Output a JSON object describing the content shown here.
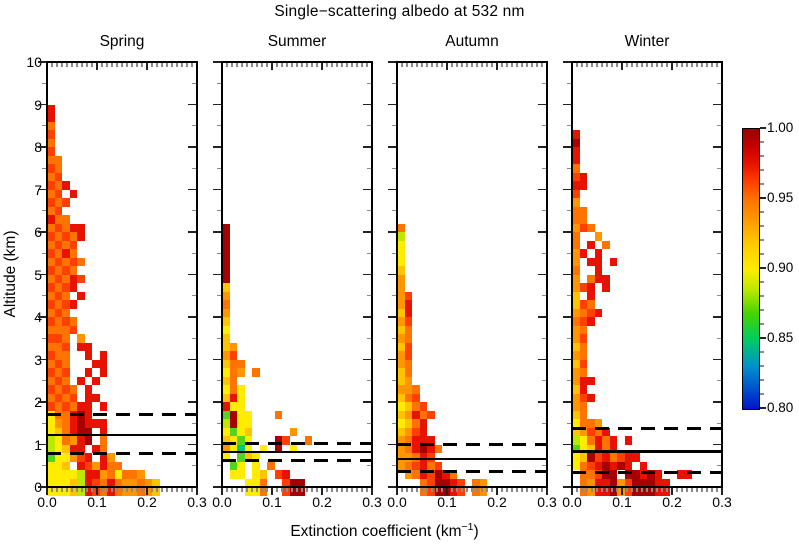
{
  "title": "Single−scattering albedo at 532 nm",
  "axes": {
    "ylabel": "Altitude (km)",
    "xlabel_pre": "Extinction coefficient (km",
    "xlabel_sup": "−1",
    "xlabel_post": ")",
    "yticks": [
      "10",
      "9",
      "8",
      "7",
      "6",
      "5",
      "4",
      "3",
      "2",
      "1",
      "0"
    ],
    "xticks": [
      "0.0",
      "0.1",
      "0.2",
      "0.3"
    ]
  },
  "colorbar": {
    "labels": [
      "1.00",
      "0.95",
      "0.90",
      "0.85",
      "0.80"
    ],
    "min": 0.8,
    "max": 1.0,
    "gradient": [
      {
        "v": 0.8,
        "color": "#0014cc"
      },
      {
        "v": 0.83,
        "color": "#0090cc"
      },
      {
        "v": 0.85,
        "color": "#00cc60"
      },
      {
        "v": 0.868,
        "color": "#44d400"
      },
      {
        "v": 0.885,
        "color": "#bce800"
      },
      {
        "v": 0.9,
        "color": "#ffec00"
      },
      {
        "v": 0.92,
        "color": "#ffc400"
      },
      {
        "v": 0.936,
        "color": "#ff9600"
      },
      {
        "v": 0.95,
        "color": "#ff7300"
      },
      {
        "v": 0.962,
        "color": "#ff4000"
      },
      {
        "v": 0.975,
        "color": "#e81200"
      },
      {
        "v": 0.988,
        "color": "#c40000"
      },
      {
        "v": 1.0,
        "color": "#980000"
      }
    ]
  },
  "chart_data": {
    "type": "heatmap",
    "title": "Single−scattering albedo at 532 nm",
    "xlabel": "Extinction coefficient (km^-1)",
    "ylabel": "Altitude (km)",
    "x_range": [
      0,
      0.3
    ],
    "y_range": [
      0,
      10
    ],
    "x_bin_width": 0.015,
    "y_bin_km": 0.2,
    "grid_note": "Each panel grid has 50 rows (top row = 9.8-10.0 km, bottom row = 0-0.2 km) and 20 columns (col 0 = extinction 0-0.015). '.' = no data; letters map to single-scattering-albedo levels in 'levels'.",
    "levels": {
      "D": {
        "ssa": 0.99,
        "color": "#a80000"
      },
      "R": {
        "ssa": 0.975,
        "color": "#e81200"
      },
      "r": {
        "ssa": 0.962,
        "color": "#ff4000"
      },
      "O": {
        "ssa": 0.948,
        "color": "#ff7300"
      },
      "o": {
        "ssa": 0.935,
        "color": "#ff9600"
      },
      "Y": {
        "ssa": 0.92,
        "color": "#ffc400"
      },
      "y": {
        "ssa": 0.9,
        "color": "#ffec00"
      },
      "G": {
        "ssa": 0.885,
        "color": "#bce800"
      },
      "g": {
        "ssa": 0.865,
        "color": "#55d41e"
      },
      "c": {
        "ssa": 0.845,
        "color": "#00c878"
      },
      "b": {
        "ssa": 0.81,
        "color": "#0022dd"
      }
    },
    "panels": [
      {
        "title": "Spring",
        "ref_lines": {
          "dashed_upper_km": 1.7,
          "solid_km": 1.22,
          "dashed_lower_km": 0.8
        },
        "grid": [
          "....................",
          "....................",
          "....................",
          "....................",
          "....................",
          "R...................",
          "R...................",
          "O...................",
          "r...................",
          "O...................",
          "r...................",
          "OO..................",
          "rO..................",
          "Or..................",
          "rOR.................",
          "Or.R................",
          "rOr.................",
          "Or..................",
          "ROO.................",
          "OrORR...............",
          "rOrOR...............",
          "OrOr................",
          "rORO................",
          "OrOrO...............",
          "rOrO................",
          "OrORr...............",
          "rOrR................",
          "OrO.R...............",
          "rOrR................",
          "OrO.................",
          "rOrO................",
          "OOOr................",
          "rrO.o...............",
          "OOr.RR..............",
          "rOO..R.R............",
          "OrO...RR............",
          "rOr..R.R............",
          "OrO.R.R.............",
          "rOrO.R..............",
          "OrOr.RR.............",
          "rOrORR.R............",
          "yOORDR..............",
          "yoORDRRR............",
          "yYORDD.R............",
          "GyOoRD.O............",
          "GyYRR.RO............",
          "gyyorR.Ro...........",
          "yyY.RroROO..........",
          "yyyyGRRoOyOOo.......",
          "yyyYGRrOROooOoY.....",
          "yyyYGRrOROooOoY....."
        ]
      },
      {
        "title": "Summer",
        "ref_lines": {
          "dashed_upper_km": 1.03,
          "solid_km": 0.82,
          "dashed_lower_km": 0.62
        },
        "grid": [
          "....................",
          "....................",
          "....................",
          "....................",
          "....................",
          "....................",
          "....................",
          "....................",
          "....................",
          "....................",
          "....................",
          "....................",
          "....................",
          "....................",
          "....................",
          "....................",
          "....................",
          "....................",
          "....................",
          "D...................",
          "D...................",
          "D...................",
          "D...................",
          "D...................",
          "D...................",
          "D...................",
          "Y...................",
          "o...................",
          "O...................",
          "o...................",
          "Y...................",
          "y...................",
          "Y...................",
          "Yo..................",
          "or..................",
          "YOO.................",
          "yOo.O...............",
          "YO..................",
          "yOy.................",
          "YRy.................",
          "Ryy.................",
          "gDyy...O............",
          "GDyy................",
          "ygyY.....o..........",
          "Yygy...Dr..O........",
          "oycy.y.D.y..........",
          "y.gYy...............",
          ".gy.y.O.............",
          ".yy.yY.rR...........",
          "...yyO..rDD.........",
          "...yyO..rDD........."
        ]
      },
      {
        "title": "Autumn",
        "ref_lines": {
          "dashed_upper_km": 1.0,
          "solid_km": 0.66,
          "dashed_lower_km": 0.36
        },
        "grid": [
          "....................",
          "....................",
          "....................",
          "....................",
          "....................",
          "....................",
          "....................",
          "....................",
          "....................",
          "....................",
          "....................",
          "....................",
          "....................",
          "....................",
          "....................",
          "....................",
          "....................",
          "....................",
          "....................",
          "O...................",
          "G...................",
          "y...................",
          "y...................",
          "y...................",
          "Y...................",
          "o...................",
          "o...................",
          "or..................",
          "oR..................",
          "YR..................",
          "or..................",
          "YO..................",
          "oO..................",
          "Yr..................",
          "or..................",
          "oO..................",
          "YO..................",
          "Yo..................",
          "ooO.................",
          "YOr.................",
          "yYOr................",
          "YoROr...............",
          "yYOR................",
          "YorR................",
          "oORRR...............",
          "oORDRO..............",
          "ooORr...............",
          "oOrROr..............",
          ".oORrDRO............",
          "...OrDDRr.Oo........",
          "...OrDDRr.Oo........"
        ]
      },
      {
        "title": "Winter",
        "ref_lines": {
          "dashed_upper_km": 1.37,
          "solid_km": 0.84,
          "dashed_lower_km": 0.33
        },
        "grid": [
          "....................",
          "....................",
          "....................",
          "....................",
          "....................",
          "....................",
          "....................",
          "....................",
          "R...................",
          "D...................",
          "R...................",
          "R...................",
          "O...................",
          "rR..................",
          "RR..................",
          "r...................",
          "o...................",
          "OO..................",
          "OO..................",
          "orO.................",
          "O..o................",
          "O.R.O...............",
          "oR.R................",
          "o.RR.R..............",
          "O..R................",
          "o.ORR...............",
          "orR.R...............",
          "Y.R.................",
          "YrO.................",
          "oOrR................",
          "OrR.................",
          "oO..................",
          "or..................",
          "YO..................",
          "oO..................",
          "Yr..................",
          "oO..................",
          "oRR.................",
          "YR..................",
          "orR.................",
          "oO..................",
          "YO..................",
          "yOOo................",
          "YorOR...............",
          "GyOROR.R............",
          "gyYROR..............",
          "yYDrROrRR...........",
          "yOrRDRDR.R..........",
          ".OOrDD.DDRDR..RR....",
          ".OoRRDorDDDRR.......",
          ".OoRRDorDDDRR......."
        ]
      }
    ]
  }
}
